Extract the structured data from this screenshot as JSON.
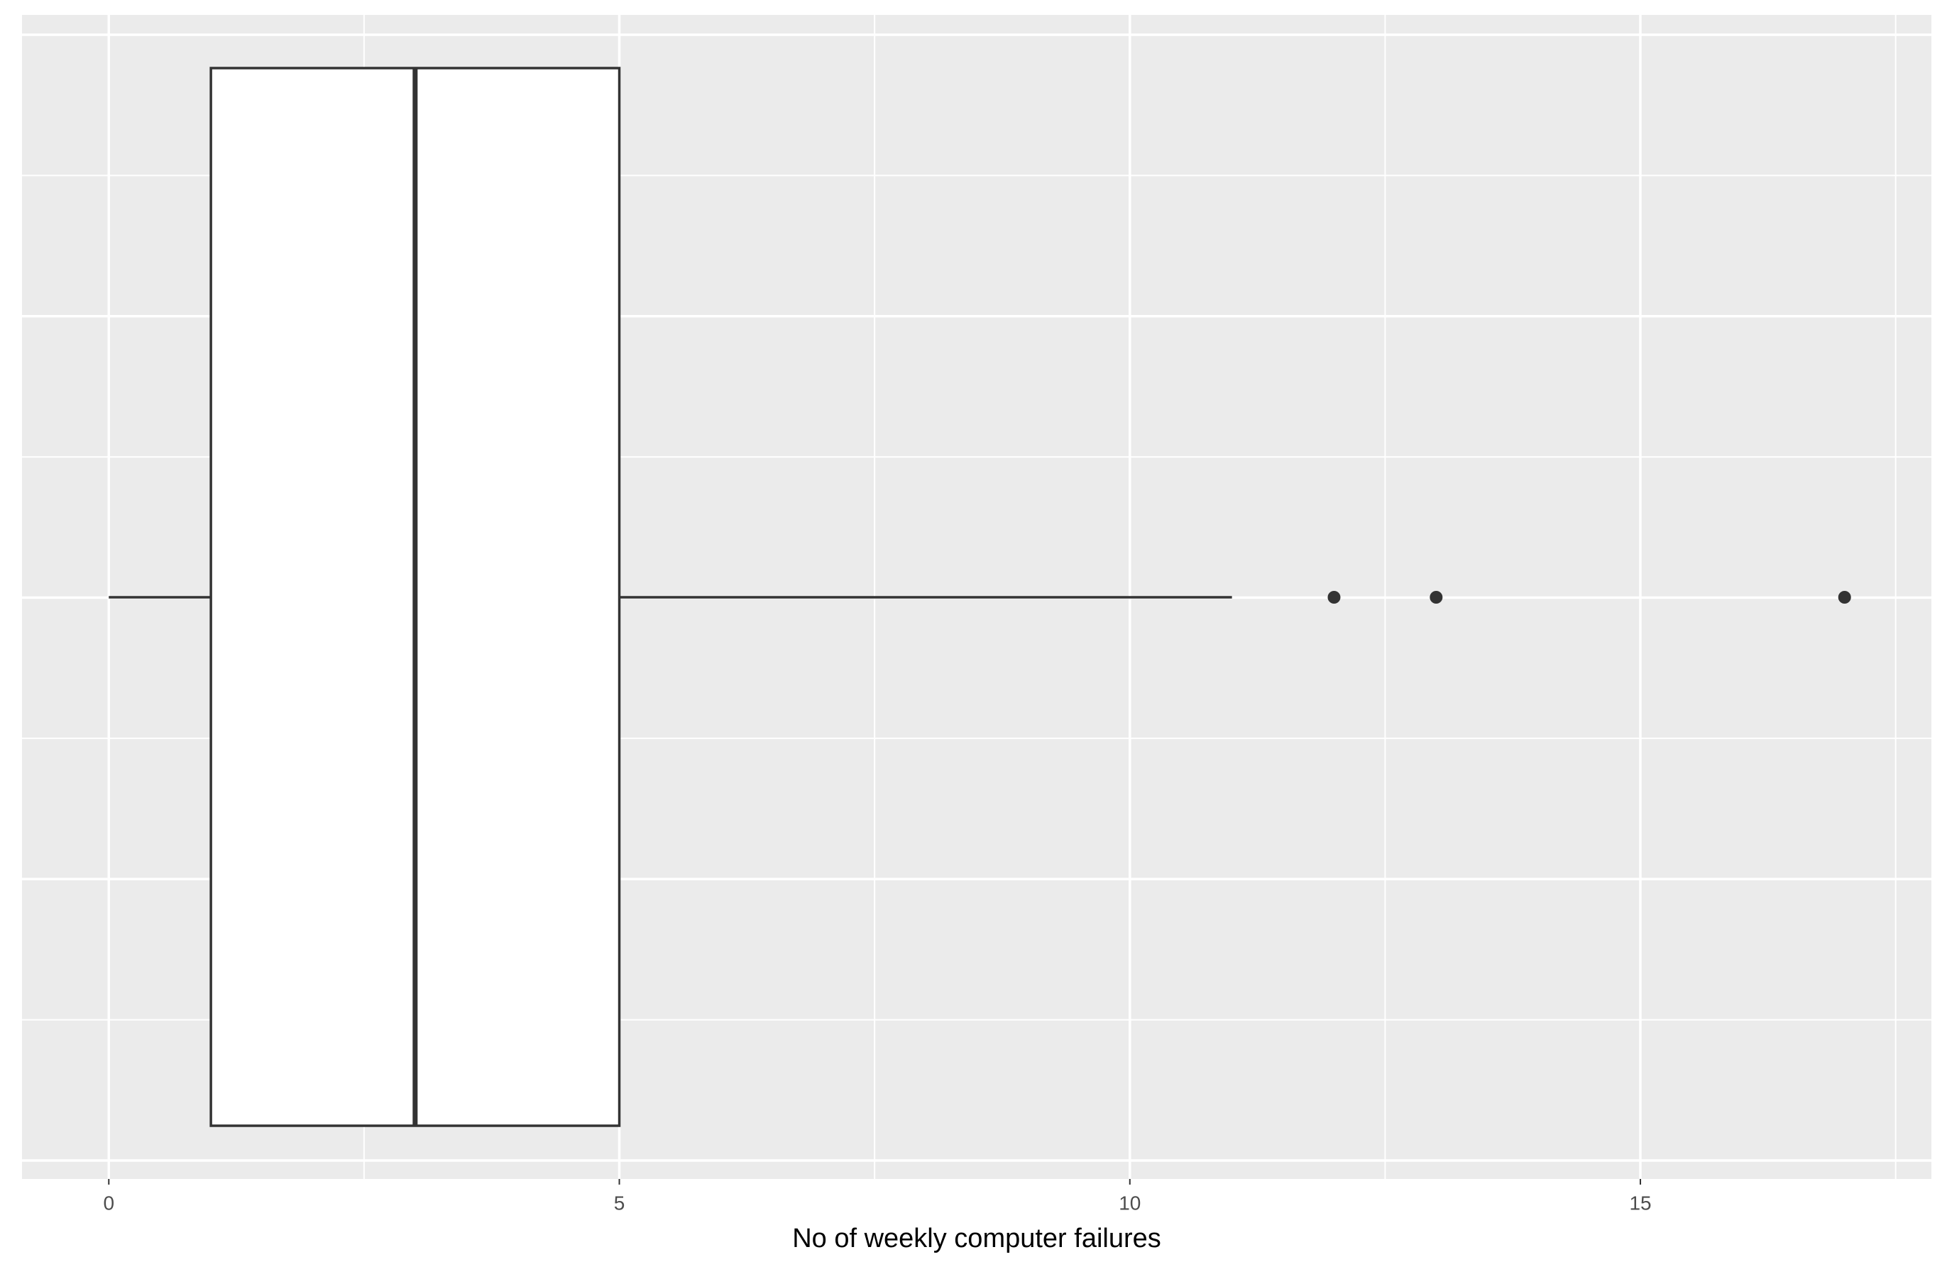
{
  "chart_data": {
    "type": "boxplot",
    "x_label": "No of weekly computer failures",
    "xlim": [
      -0.85,
      17.85
    ],
    "xticks": [
      0,
      5,
      10,
      15
    ],
    "xminorticks": [
      2.5,
      7.5,
      12.5,
      17.5
    ],
    "grid": true,
    "box": {
      "min": 0,
      "q1": 1,
      "median": 3,
      "q3": 5,
      "max": 11
    },
    "outliers": [
      12,
      13,
      17
    ],
    "color": "#333333",
    "fill": "#ffffff"
  }
}
